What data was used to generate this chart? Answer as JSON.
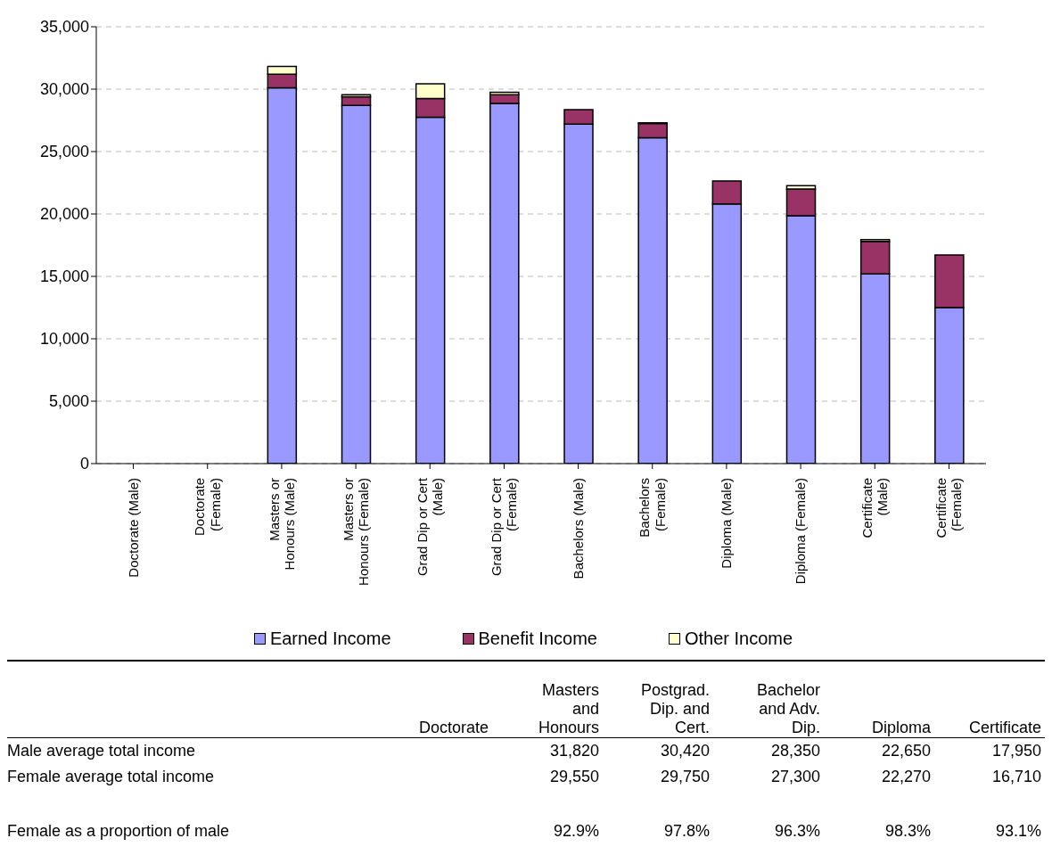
{
  "chart_data": {
    "type": "bar",
    "stacked": true,
    "categories": [
      "Doctorate (Male)",
      "Doctorate (Female)",
      "Masters or Honours (Male)",
      "Masters or Honours (Female)",
      "Grad Dip or Cert (Male)",
      "Grad Dip or Cert (Female)",
      "Bachelors (Male)",
      "Bachelors (Female)",
      "Diploma (Male)",
      "Diploma (Female)",
      "Certificate (Male)",
      "Certificate (Female)"
    ],
    "series": [
      {
        "name": "Earned Income",
        "color": "#9999ff",
        "values": [
          null,
          null,
          30100,
          28700,
          27750,
          28850,
          27200,
          26100,
          20800,
          19850,
          15200,
          12500
        ]
      },
      {
        "name": "Benefit Income",
        "color": "#993366",
        "values": [
          null,
          null,
          1100,
          700,
          1500,
          700,
          1150,
          1150,
          1850,
          2150,
          2600,
          4210
        ]
      },
      {
        "name": "Other Income",
        "color": "#ffffcc",
        "values": [
          null,
          null,
          620,
          150,
          1170,
          200,
          0,
          50,
          0,
          270,
          150,
          0
        ]
      }
    ],
    "ylim": [
      0,
      35000
    ],
    "yticks": [
      {
        "value": 0,
        "label": "0"
      },
      {
        "value": 5000,
        "label": "5,000"
      },
      {
        "value": 10000,
        "label": "10,000"
      },
      {
        "value": 15000,
        "label": "15,000"
      },
      {
        "value": 20000,
        "label": "20,000"
      },
      {
        "value": 25000,
        "label": "25,000"
      },
      {
        "value": 30000,
        "label": "30,000"
      },
      {
        "value": 35000,
        "label": "35,000"
      }
    ],
    "grid": "y",
    "legend": "bottom",
    "annotations": [
      "Doctorate",
      "Masters and Honours",
      "Postgrad. Dip. and Cert.",
      "Bachelor and Adv. Dip.",
      "Diploma",
      "Certificate",
      "Male average total income",
      "Female average total income",
      "Female as a proportion of male",
      "31,820",
      "30,420",
      "28,350",
      "22,650",
      "17,950",
      "29,550",
      "29,750",
      "27,300",
      "22,270",
      "16,710",
      "92.9%",
      "97.8%",
      "96.3%",
      "98.3%",
      "93.1%"
    ]
  }
}
